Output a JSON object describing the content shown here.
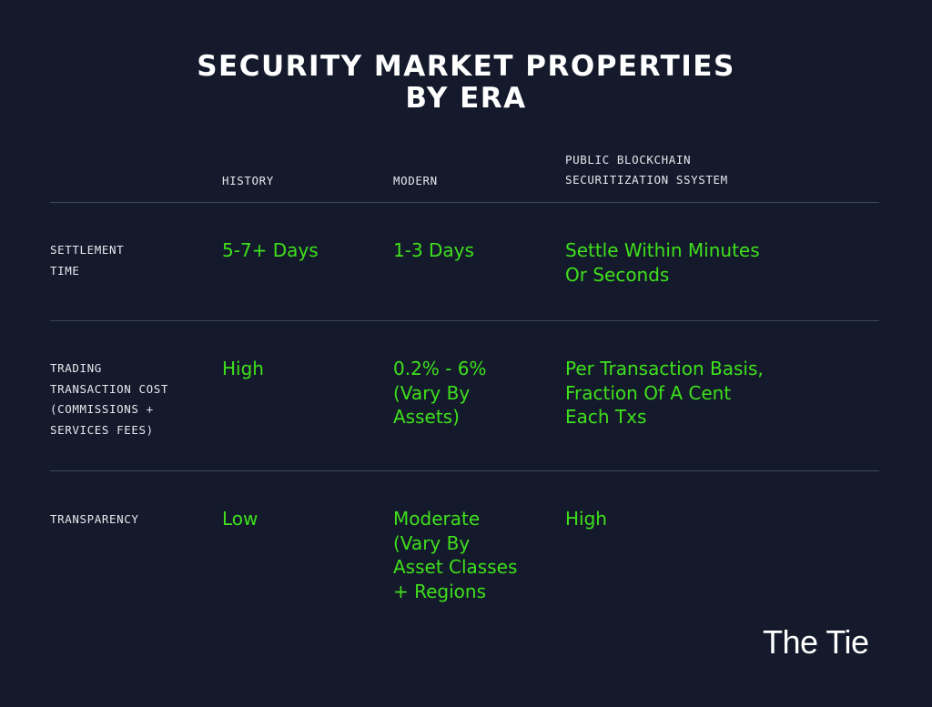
{
  "title": {
    "line1": "SECURITY MARKET PROPERTIES",
    "line2": "BY ERA"
  },
  "columns": {
    "history": "HISTORY",
    "modern": "MODERN",
    "blockchain": [
      "PUBLIC BLOCKCHAIN",
      "SECURITIZATION SSYSTEM"
    ]
  },
  "rows": [
    {
      "label": [
        "SETTLEMENT",
        "TIME"
      ],
      "history": [
        "5-7+ Days"
      ],
      "modern": [
        "1-3 Days"
      ],
      "blockchain": [
        "Settle Within Minutes",
        "Or Seconds"
      ]
    },
    {
      "label": [
        "TRADING",
        "TRANSACTION COST",
        "(COMMISSIONS +",
        "SERVICES FEES)"
      ],
      "history": [
        "High"
      ],
      "modern": [
        "0.2% - 6%",
        "(Vary By",
        "Assets)"
      ],
      "blockchain": [
        "Per Transaction Basis,",
        "Fraction Of A Cent",
        "Each Txs"
      ]
    },
    {
      "label": [
        "TRANSPARENCY"
      ],
      "history": [
        "Low"
      ],
      "modern": [
        "Moderate",
        "(Vary By",
        "Asset Classes",
        "+ Regions"
      ],
      "blockchain": [
        "High"
      ]
    }
  ],
  "logo": "The Tie",
  "colors": {
    "background": "#141a2b",
    "accent": "#3fe01c",
    "divider": "#3d465e",
    "text": "#ffffff"
  }
}
